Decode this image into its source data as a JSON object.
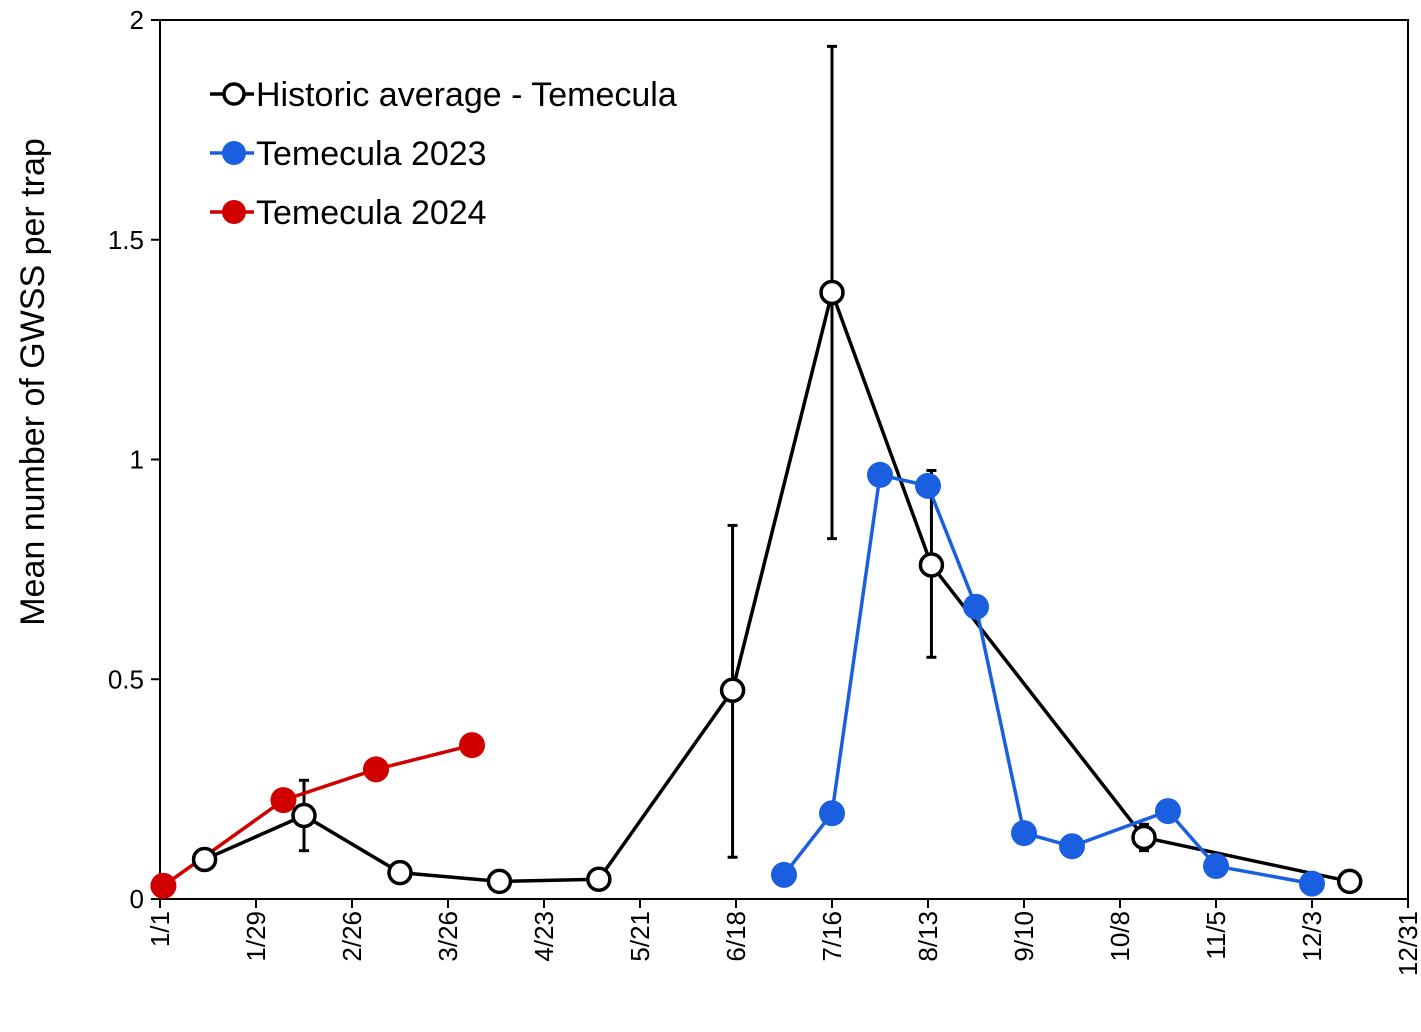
{
  "chart_data": {
    "type": "line",
    "title": "",
    "xlabel": "",
    "ylabel": "Mean number of GWSS per trap",
    "xlim": [
      "1/1",
      "12/31"
    ],
    "ylim": [
      0,
      2
    ],
    "x_ticks": [
      "1/1",
      "1/29",
      "2/26",
      "3/26",
      "4/23",
      "5/21",
      "6/18",
      "7/16",
      "8/13",
      "9/10",
      "10/8",
      "11/5",
      "12/3",
      "12/31"
    ],
    "y_ticks": [
      "0",
      "0.5",
      "1",
      "1.5",
      "2"
    ],
    "grid": false,
    "legend_position": "top-left",
    "series": [
      {
        "name": "Historic average - Temecula",
        "color": "#000000",
        "marker": "open-circle",
        "x": [
          "1/14",
          "2/12",
          "3/12",
          "4/10",
          "5/9",
          "6/17",
          "7/16",
          "8/14",
          "10/15",
          "12/14"
        ],
        "y": [
          0.09,
          0.19,
          0.06,
          0.04,
          0.045,
          0.475,
          1.38,
          0.76,
          0.14,
          0.04
        ],
        "error_low": [
          null,
          0.11,
          null,
          null,
          null,
          0.095,
          0.82,
          0.55,
          0.11,
          null
        ],
        "error_high": [
          null,
          0.27,
          null,
          null,
          null,
          0.85,
          1.94,
          0.975,
          0.17,
          null
        ]
      },
      {
        "name": "Temecula 2023",
        "color": "#1a5fe0",
        "marker": "filled-circle",
        "x": [
          "7/2",
          "7/16",
          "7/30",
          "8/13",
          "8/27",
          "9/10",
          "9/24",
          "10/22",
          "11/5",
          "12/3"
        ],
        "y": [
          0.055,
          0.195,
          0.965,
          0.94,
          0.665,
          0.15,
          0.12,
          0.2,
          0.075,
          0.035
        ]
      },
      {
        "name": "Temecula 2024",
        "color": "#d00000",
        "marker": "filled-circle",
        "x": [
          "1/2",
          "2/6",
          "3/5",
          "4/2"
        ],
        "y": [
          0.03,
          0.225,
          0.295,
          0.35
        ]
      }
    ]
  }
}
